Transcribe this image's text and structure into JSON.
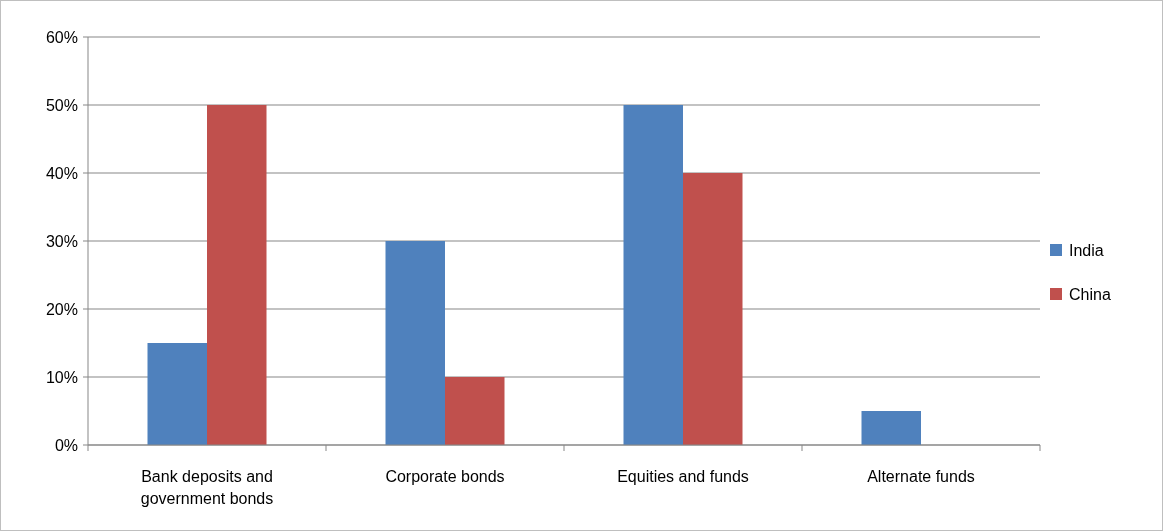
{
  "chart_data": {
    "type": "bar",
    "categories": [
      "Bank deposits and government bonds",
      "Corporate bonds",
      "Equities and funds",
      "Alternate funds"
    ],
    "series": [
      {
        "name": "India",
        "color": "#4f81bd",
        "values": [
          15,
          30,
          50,
          5
        ]
      },
      {
        "name": "China",
        "color": "#c0504d",
        "values": [
          50,
          10,
          40,
          0
        ]
      }
    ],
    "ylim": [
      0,
      60
    ],
    "yticks": [
      {
        "value": 0,
        "label": "0%"
      },
      {
        "value": 10,
        "label": "10%"
      },
      {
        "value": 20,
        "label": "20%"
      },
      {
        "value": 30,
        "label": "30%"
      },
      {
        "value": 40,
        "label": "40%"
      },
      {
        "value": 50,
        "label": "50%"
      },
      {
        "value": 60,
        "label": "60%"
      }
    ],
    "grid": "y",
    "legend": "right"
  }
}
